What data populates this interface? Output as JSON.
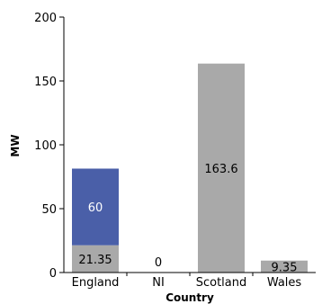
{
  "chart_data": {
    "type": "bar",
    "stacked": true,
    "categories": [
      "England",
      "NI",
      "Scotland",
      "Wales"
    ],
    "series": [
      {
        "key": "grey",
        "color": "#a9a9a9",
        "label_color": "#000000",
        "values": [
          21.35,
          0,
          163.6,
          9.35
        ],
        "labels": [
          "21.35",
          "0",
          "163.6",
          "9.35"
        ]
      },
      {
        "key": "blue",
        "color": "#4a5fa8",
        "label_color": "#ffffff",
        "values": [
          60,
          0,
          0,
          0
        ],
        "labels": [
          "60",
          "",
          "",
          ""
        ]
      }
    ],
    "xlabel": "Country",
    "ylabel": "MW",
    "ylim": [
      0,
      200
    ],
    "yticks": [
      0,
      50,
      100,
      150,
      200
    ],
    "ytick_labels": [
      "0",
      "50",
      "100",
      "150",
      "200"
    ],
    "grid": false,
    "legend": "none"
  }
}
